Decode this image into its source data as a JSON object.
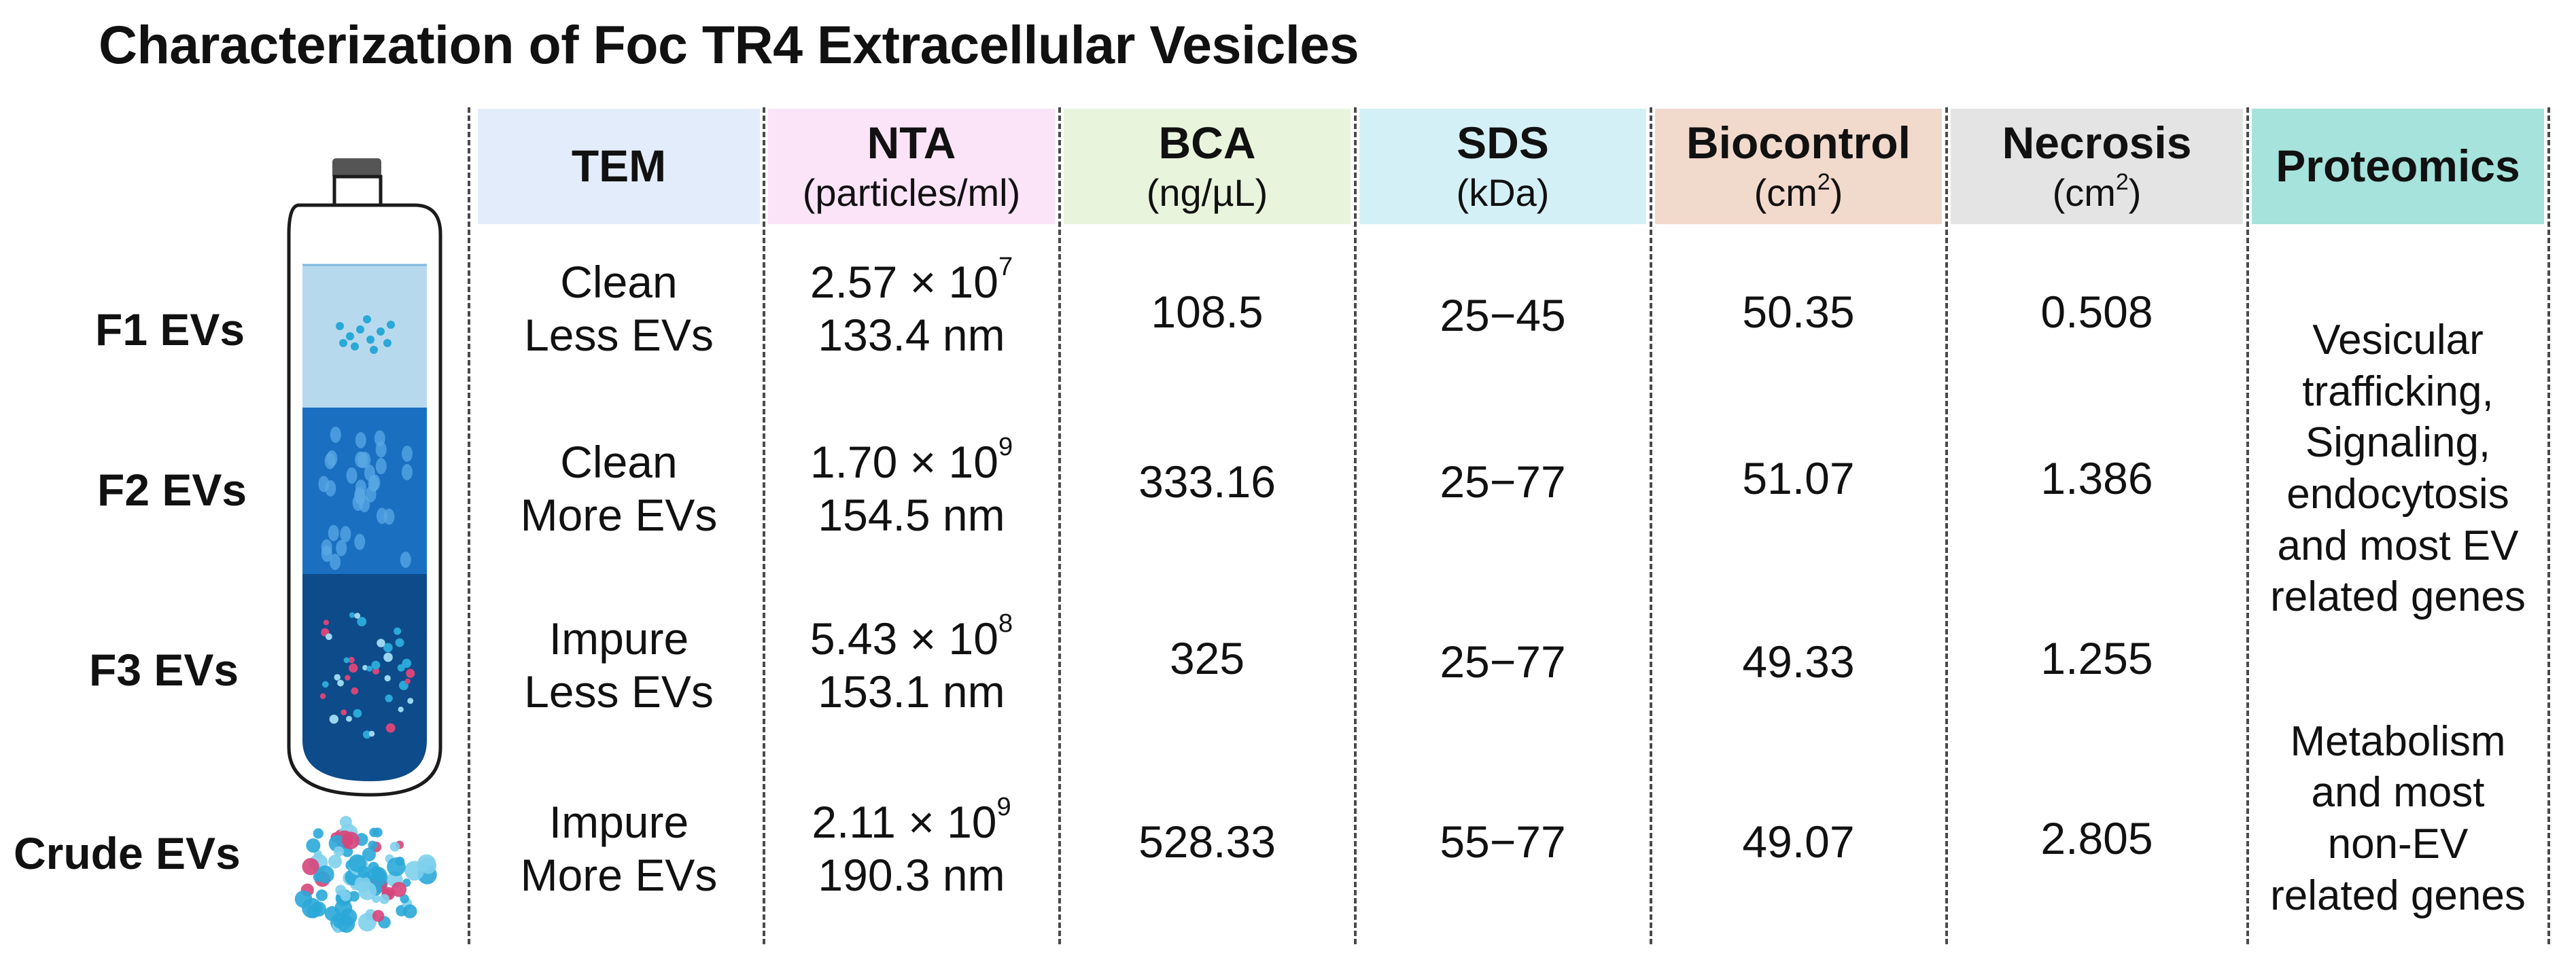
{
  "title": "Characterization of Foc TR4 Extracellular Vesicles",
  "columns": [
    {
      "id": "tem",
      "label": "TEM",
      "unit": "",
      "color": "#e3ecfb"
    },
    {
      "id": "nta",
      "label": "NTA",
      "unit": "(particles/ml)",
      "color": "#fbe3f8"
    },
    {
      "id": "bca",
      "label": "BCA",
      "unit": "(ng/µL)",
      "color": "#e8f5dc"
    },
    {
      "id": "sds",
      "label": "SDS",
      "unit": "(kDa)",
      "color": "#d4f0f7"
    },
    {
      "id": "biocontrol",
      "label": "Biocontrol",
      "unit": "(cm",
      "unit_sup": "2",
      "unit_end": ")",
      "color": "#f1d9cc"
    },
    {
      "id": "necrosis",
      "label": "Necrosis",
      "unit": "(cm",
      "unit_sup": "2",
      "unit_end": ")",
      "color": "#e4e4e4"
    },
    {
      "id": "proteomics",
      "label": "Proteomics",
      "unit": "",
      "color": "#a5e3dc"
    }
  ],
  "rows": [
    {
      "label": "F1 EVs",
      "tem": [
        "Clean",
        "Less EVs"
      ],
      "nta_base": "2.57 × 10",
      "nta_exp": "7",
      "nta_size": "133.4 nm",
      "bca": "108.5",
      "sds": "25−45",
      "biocontrol": "50.35",
      "necrosis": "0.508"
    },
    {
      "label": "F2 EVs",
      "tem": [
        "Clean",
        "More EVs"
      ],
      "nta_base": "1.70 × 10",
      "nta_exp": "9",
      "nta_size": "154.5 nm",
      "bca": "333.16",
      "sds": "25−77",
      "biocontrol": "51.07",
      "necrosis": "1.386"
    },
    {
      "label": "F3 EVs",
      "tem": [
        "Impure",
        "Less EVs"
      ],
      "nta_base": "5.43 × 10",
      "nta_exp": "8",
      "nta_size": "153.1 nm",
      "bca": "325",
      "sds": "25−77",
      "biocontrol": "49.33",
      "necrosis": "1.255"
    },
    {
      "label": "Crude EVs",
      "tem": [
        "Impure",
        "More EVs"
      ],
      "nta_base": "2.11 × 10",
      "nta_exp": "9",
      "nta_size": "190.3 nm",
      "bca": "528.33",
      "sds": "55−77",
      "biocontrol": "49.07",
      "necrosis": "2.805"
    }
  ],
  "proteomics": [
    [
      "Vesicular",
      "trafficking,",
      "Signaling,",
      "endocytosis",
      "and most EV",
      "related genes"
    ],
    [
      "Metabolism",
      "and most",
      "non-EV",
      "related genes"
    ]
  ],
  "illustration": {
    "icons": [
      "centrifuge-tube-icon",
      "vesicle-cluster-icon"
    ],
    "colors": {
      "f1": "#b7d9ee",
      "f2": "#1a6fc0",
      "f3": "#0d4b8a",
      "cap": "#555555",
      "vesicle": "#2aa8d8",
      "accent": "#d6457a"
    }
  }
}
